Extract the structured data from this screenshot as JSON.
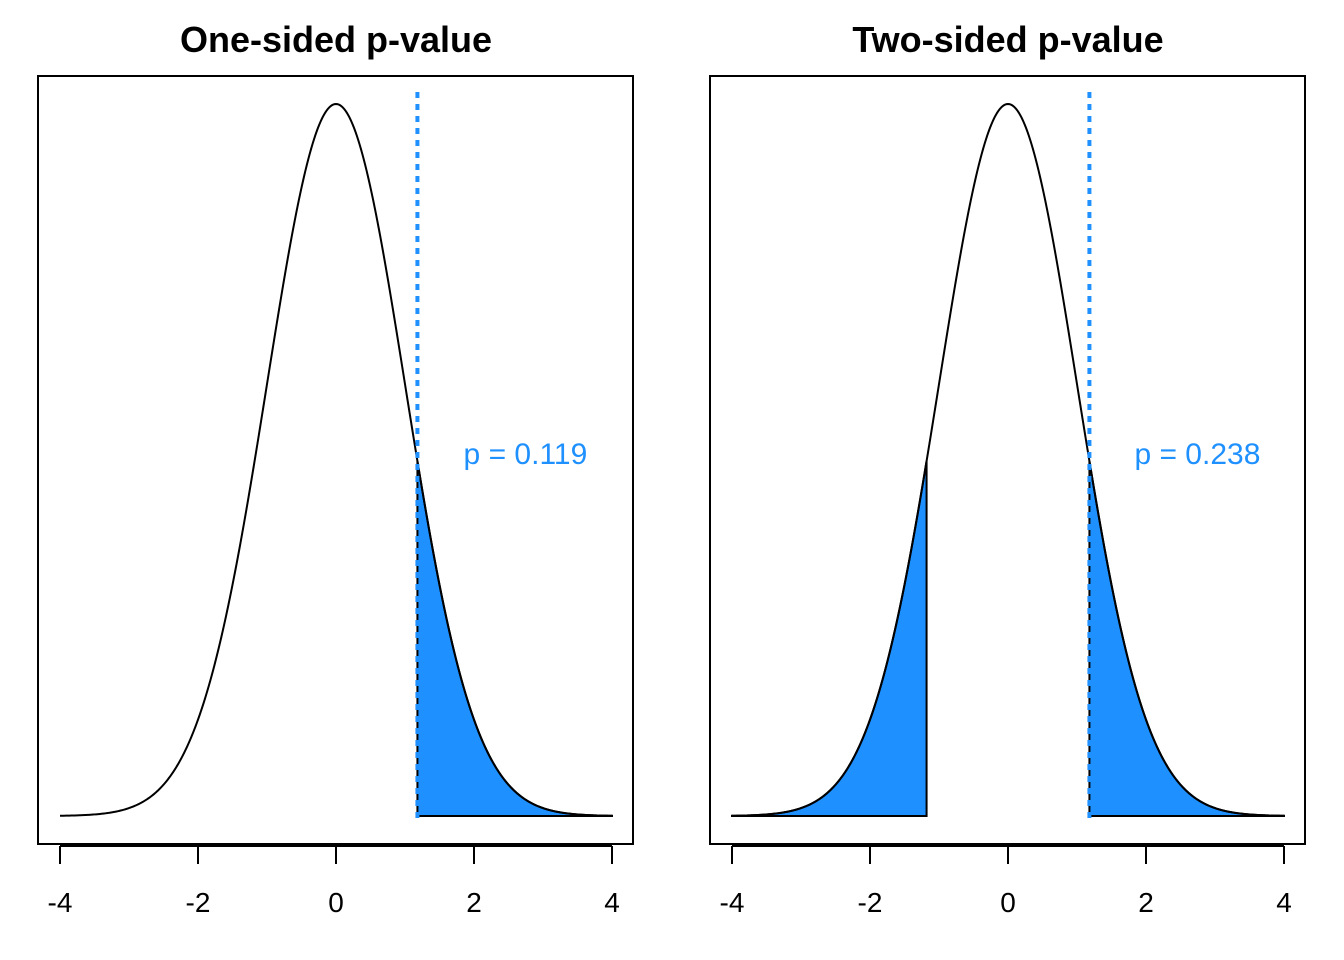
{
  "colors": {
    "fill": "#1E90FF",
    "annotation": "#1E90FF",
    "curve": "#000000",
    "frame": "#000000"
  },
  "chart_data": [
    {
      "type": "area",
      "title": "One-sided p-value",
      "xlabel": "",
      "ylabel": "",
      "distribution": "standard normal density",
      "xlim": [
        -4,
        4
      ],
      "ylim": [
        0,
        0.4
      ],
      "x_ticks": [
        -4,
        -2,
        0,
        2,
        4
      ],
      "x_tick_labels": [
        "-4",
        "-2",
        "0",
        "2",
        "4"
      ],
      "y_axis_shown": false,
      "observed_statistic": 1.18,
      "shaded_tails": [
        "upper"
      ],
      "annotation": "p = 0.119",
      "p_value": 0.119,
      "reference_line": "dotted vertical line at observed statistic"
    },
    {
      "type": "area",
      "title": "Two-sided p-value",
      "xlabel": "",
      "ylabel": "",
      "distribution": "standard normal density",
      "xlim": [
        -4,
        4
      ],
      "ylim": [
        0,
        0.4
      ],
      "x_ticks": [
        -4,
        -2,
        0,
        2,
        4
      ],
      "x_tick_labels": [
        "-4",
        "-2",
        "0",
        "2",
        "4"
      ],
      "y_axis_shown": false,
      "observed_statistic": 1.18,
      "shaded_tails": [
        "lower",
        "upper"
      ],
      "annotation": "p = 0.238",
      "p_value": 0.238,
      "reference_line": "dotted vertical line at observed statistic"
    }
  ]
}
